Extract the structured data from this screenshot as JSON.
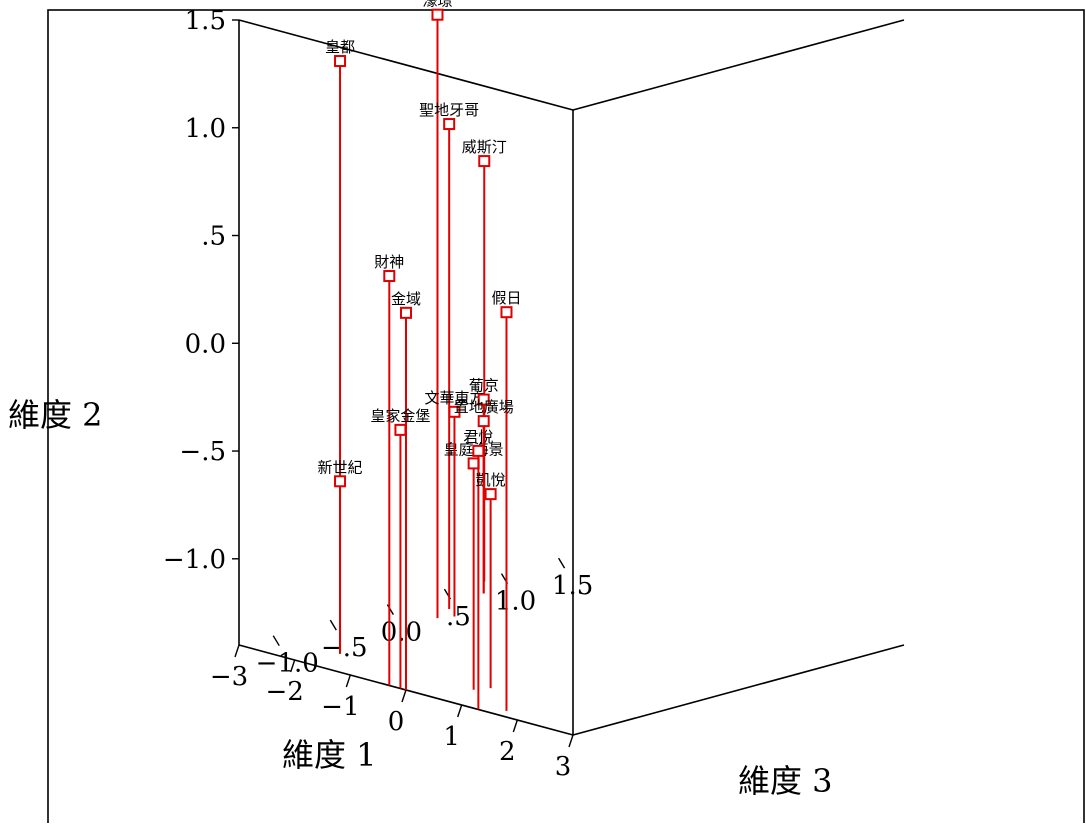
{
  "chart_data": {
    "type": "scatter",
    "subtype": "3d-scatter-with-drop-lines",
    "title": "",
    "xlabel": "維度 1",
    "ylabel": "維度 2",
    "zlabel": "維度 3",
    "x_ticks": [
      "3",
      "2",
      "1",
      "0",
      "−1",
      "−2",
      "−3"
    ],
    "y_ticks": [
      "1.5",
      "1.0",
      ".5",
      "0.0",
      "−.5",
      "−1.0"
    ],
    "z_ticks": [
      "−1.0",
      "−.5",
      "0.0",
      ".5",
      "1.0",
      "1.5"
    ],
    "xlim": [
      -3,
      3
    ],
    "ylim": [
      -1.4,
      1.5
    ],
    "zlim": [
      -1.3,
      1.6
    ],
    "grid": false,
    "marker_color": "#e00000",
    "points": [
      {
        "label": "皇都",
        "x": -1.8,
        "y": 1.35,
        "z": -1.0
      },
      {
        "label": "濠璟",
        "x": -2.1,
        "y": 1.4,
        "z": 0.0
      },
      {
        "label": "聖地牙哥",
        "x": -2.3,
        "y": 0.85,
        "z": 0.2
      },
      {
        "label": "威斯汀",
        "x": -2.9,
        "y": 0.55,
        "z": 0.8
      },
      {
        "label": "假日",
        "x": 1.6,
        "y": 0.45,
        "z": -1.2
      },
      {
        "label": "財神",
        "x": -0.3,
        "y": 0.5,
        "z": -1.3
      },
      {
        "label": "金域",
        "x": 0.0,
        "y": 0.35,
        "z": -1.3
      },
      {
        "label": "皇庭海景",
        "x": 0.6,
        "y": -0.35,
        "z": -1.0
      },
      {
        "label": "皇家金堡",
        "x": -0.1,
        "y": -0.2,
        "z": -1.3
      },
      {
        "label": "君悅",
        "x": 1.3,
        "y": -0.2,
        "z": -1.3
      },
      {
        "label": "凱悅",
        "x": 0.7,
        "y": -0.5,
        "z": -0.9
      },
      {
        "label": "新世紀",
        "x": -1.8,
        "y": -0.6,
        "z": -1.0
      },
      {
        "label": "文華東方",
        "x": -2.0,
        "y": -0.45,
        "z": 0.1
      },
      {
        "label": "葡京",
        "x": -2.5,
        "y": -0.5,
        "z": 0.6
      },
      {
        "label": "置地廣場",
        "x": -2.5,
        "y": -0.6,
        "z": 0.6
      }
    ]
  }
}
